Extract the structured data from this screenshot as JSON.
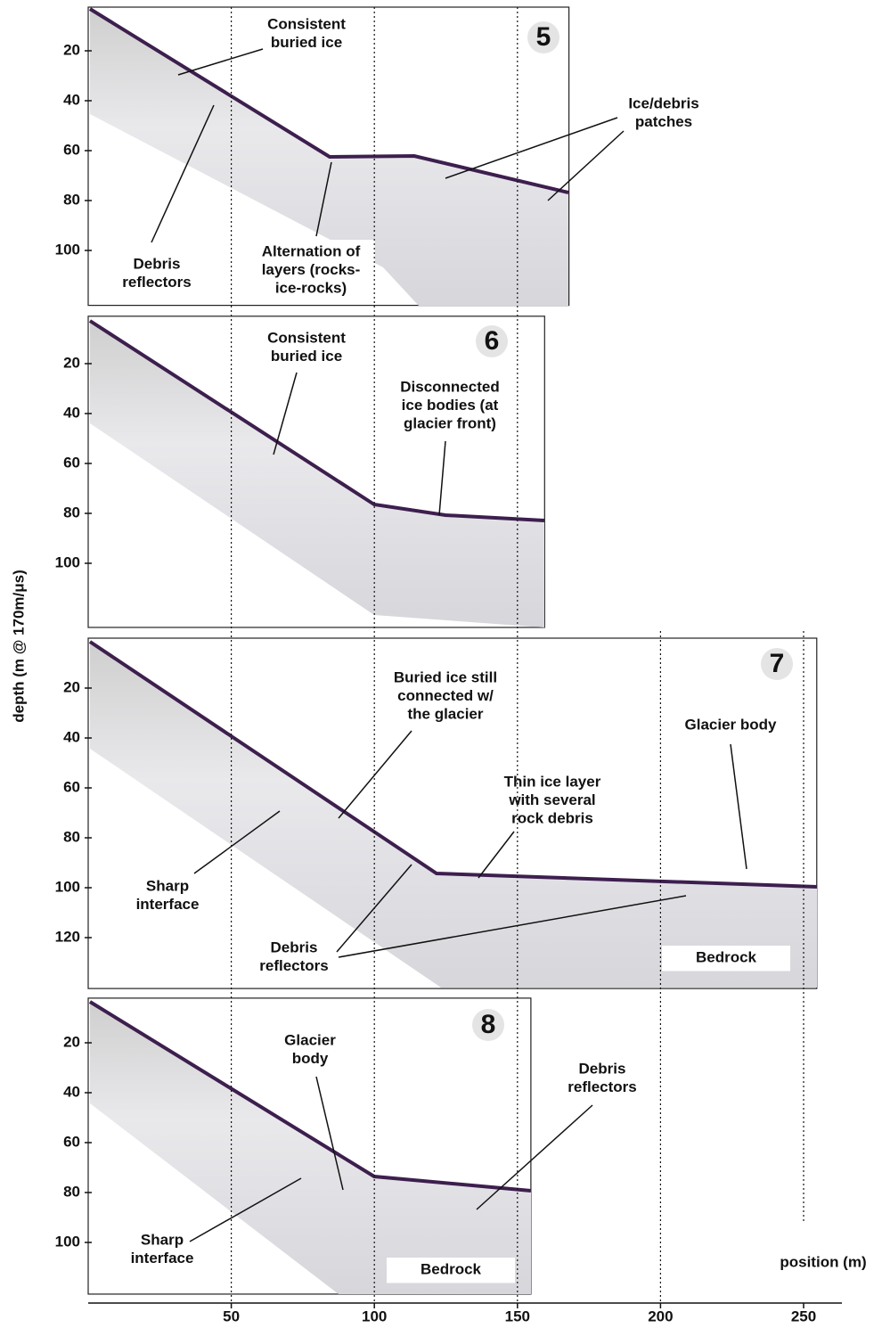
{
  "x_axis": {
    "label": "position (m)",
    "xlim": [
      0,
      263
    ],
    "xticks": [
      50,
      100,
      150,
      200,
      250
    ]
  },
  "y_axis": {
    "label": "depth (m @ 170m/μs)"
  },
  "chart_data": [
    {
      "type": "radargram",
      "title": "5",
      "xlim": [
        0,
        168
      ],
      "ylim": [
        2.5,
        122
      ],
      "yticks": [
        20,
        40,
        60,
        80,
        100
      ],
      "annotations": [
        [
          "Consistent",
          "buried ice"
        ],
        [
          "Debris",
          "reflectors"
        ],
        [
          "Alternation of",
          "layers (rocks-",
          "ice-rocks)"
        ],
        [
          "Ice/debris",
          "patches"
        ]
      ]
    },
    {
      "type": "radargram",
      "title": "6",
      "xlim": [
        0,
        159.5
      ],
      "ylim": [
        1,
        125.7
      ],
      "yticks": [
        20,
        40,
        60,
        80,
        100
      ],
      "annotations": [
        [
          "Consistent",
          "buried ice"
        ],
        [
          "Disconnected",
          "ice bodies (at",
          "glacier front)"
        ]
      ]
    },
    {
      "type": "radargram",
      "title": "7",
      "xlim": [
        0,
        254.6
      ],
      "ylim": [
        0,
        140.4
      ],
      "yticks": [
        20,
        40,
        60,
        80,
        100,
        120
      ],
      "annotations": [
        [
          "Buried ice still",
          "connected w/",
          "the glacier"
        ],
        [
          "Thin ice layer",
          "with several",
          "rock debris"
        ],
        [
          "Glacier body"
        ],
        [
          "Sharp",
          "interface"
        ],
        [
          "Debris",
          "reflectors"
        ],
        [
          "Bedrock"
        ]
      ]
    },
    {
      "type": "radargram",
      "title": "8",
      "xlim": [
        0,
        154.7
      ],
      "ylim": [
        2.1,
        120.7
      ],
      "yticks": [
        20,
        40,
        60,
        80,
        100
      ],
      "annotations": [
        [
          "Glacier",
          "body"
        ],
        [
          "Debris",
          "reflectors"
        ],
        [
          "Sharp",
          "interface"
        ],
        [
          "Bedrock"
        ]
      ]
    }
  ]
}
